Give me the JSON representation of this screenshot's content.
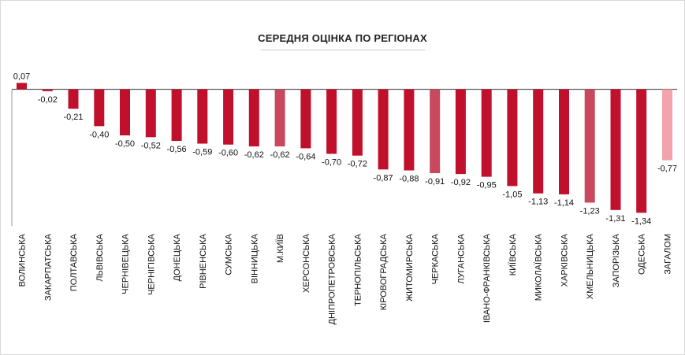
{
  "chart_data": {
    "type": "bar",
    "title": "СЕРЕДНЯ ОЦІНКА ПО РЕГІОНАХ",
    "xlabel": "",
    "ylabel": "",
    "ylim": [
      -1.4,
      0.1
    ],
    "grid": false,
    "legend": "none",
    "categories": [
      "ВОЛИНСЬКА",
      "ЗАКАРПАТСЬКА",
      "ПОЛТАВСЬКА",
      "ЛЬВІВСЬКА",
      "ЧЕРНІВЕЦЬКА",
      "ЧЕРНІГІВСЬКА",
      "ДОНЕЦЬКА",
      "РІВНЕНСЬКА",
      "СУМСЬКА",
      "ВІННИЦЬКА",
      "М.КИЇВ",
      "ХЕРСОНСЬКА",
      "ДНІПРОПЕТРОВСЬКА",
      "ТЕРНОПІЛЬСЬКА",
      "КІРОВОГРАДСЬКА",
      "ЖИТОМИРСЬКА",
      "ЧЕРКАСЬКА",
      "ЛУГАНСЬКА",
      "ІВАНО-ФРАНКІВСЬКА",
      "КИЇВСЬКА",
      "МИКОЛАЇВСЬКА",
      "ХАРКІВСЬКА",
      "ХМЕЛЬНИЦЬКА",
      "ЗАПОРІЗЬКА",
      "ОДЕСЬКА",
      "ЗАГАЛОМ"
    ],
    "values": [
      0.07,
      -0.02,
      -0.21,
      -0.4,
      -0.5,
      -0.52,
      -0.56,
      -0.59,
      -0.6,
      -0.62,
      -0.62,
      -0.64,
      -0.7,
      -0.72,
      -0.87,
      -0.88,
      -0.91,
      -0.92,
      -0.95,
      -1.05,
      -1.13,
      -1.14,
      -1.23,
      -1.31,
      -1.34,
      -0.77
    ],
    "value_labels": [
      "0,07",
      "-0,02",
      "-0,21",
      "-0,40",
      "-0,50",
      "-0,52",
      "-0,56",
      "-0,59",
      "-0,60",
      "-0,62",
      "-0,62",
      "-0,64",
      "-0,70",
      "-0,72",
      "-0,87",
      "-0,88",
      "-0,91",
      "-0,92",
      "-0,95",
      "-1,05",
      "-1,13",
      "-1,14",
      "-1,23",
      "-1,31",
      "-1,34",
      "-0,77"
    ],
    "colors": [
      "#c0102c",
      "#c0102c",
      "#c0102c",
      "#c0102c",
      "#c0102c",
      "#c0102c",
      "#c0102c",
      "#c0102c",
      "#c0102c",
      "#c0102c",
      "#c8485e",
      "#c0102c",
      "#c0102c",
      "#c0102c",
      "#c0102c",
      "#c0102c",
      "#c8485e",
      "#c0102c",
      "#c0102c",
      "#c0102c",
      "#c0102c",
      "#c0102c",
      "#c8485e",
      "#c0102c",
      "#c0102c",
      "#f2a3ac"
    ]
  },
  "colors": {
    "bar": "#c0102c",
    "bar_highlight": "#c8485e",
    "bar_total": "#f2a3ac",
    "axis": "#666666",
    "text": "#111111"
  }
}
